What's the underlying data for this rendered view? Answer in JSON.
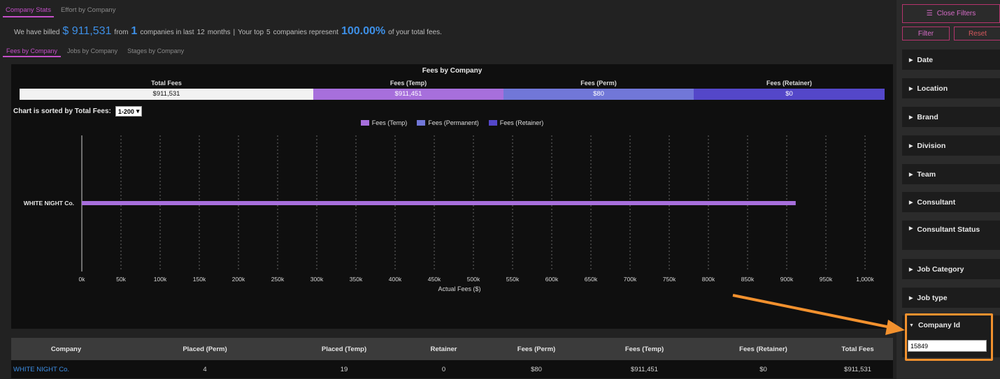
{
  "top_tabs": [
    "Company Stats",
    "Effort by Company"
  ],
  "summary": {
    "p1": "We have billed",
    "amount": "$ 911,531",
    "p2": "from",
    "companies": "1",
    "p3": "companies in last",
    "months": "12",
    "p4": "months",
    "sep": "|",
    "p5": "Your top",
    "top_n": "5",
    "p6": "companies represent",
    "percent": "100.00%",
    "p7": "of your total fees."
  },
  "sub_tabs": [
    "Fees by Company",
    "Jobs by Company",
    "Stages by Company"
  ],
  "panel_title": "Fees by Company",
  "totals": [
    {
      "label": "Total Fees",
      "value": "$911,531",
      "color": "#f2f2f2",
      "text_color": "#111111"
    },
    {
      "label": "Fees (Temp)",
      "value": "$911,451",
      "color": "#a76fdc",
      "text_color": "#ffffff"
    },
    {
      "label": "Fees (Perm)",
      "value": "$80",
      "color": "#7177d8",
      "text_color": "#ffffff"
    },
    {
      "label": "Fees (Retainer)",
      "value": "$0",
      "color": "#5447c9",
      "text_color": "#ffffff"
    }
  ],
  "sort": {
    "label": "Chart is sorted by Total Fees:",
    "value": "1-200"
  },
  "chart_data": {
    "type": "bar",
    "orientation": "horizontal",
    "stacked": true,
    "categories": [
      "WHITE NIGHT Co."
    ],
    "series": [
      {
        "name": "Fees (Temp)",
        "values": [
          911451
        ],
        "color": "#a76fdc"
      },
      {
        "name": "Fees (Permanent)",
        "values": [
          80
        ],
        "color": "#7177d8"
      },
      {
        "name": "Fees (Retainer)",
        "values": [
          0
        ],
        "color": "#5447c9"
      }
    ],
    "xlabel": "Actual Fees ($)",
    "xlim": [
      0,
      1000000
    ],
    "xticks": [
      0,
      50000,
      100000,
      150000,
      200000,
      250000,
      300000,
      350000,
      400000,
      450000,
      500000,
      550000,
      600000,
      650000,
      700000,
      750000,
      800000,
      850000,
      900000,
      950000,
      1000000
    ],
    "xtick_labels": [
      "0k",
      "50k",
      "100k",
      "150k",
      "200k",
      "250k",
      "300k",
      "350k",
      "400k",
      "450k",
      "500k",
      "550k",
      "600k",
      "650k",
      "700k",
      "750k",
      "800k",
      "850k",
      "900k",
      "950k",
      "1,000k"
    ],
    "grid": true,
    "legend_position": "top-center"
  },
  "table": {
    "headers": [
      "Company",
      "Placed (Perm)",
      "Placed (Temp)",
      "Retainer",
      "Fees (Perm)",
      "Fees (Temp)",
      "Fees (Retainer)",
      "Total Fees"
    ],
    "rows": [
      [
        "WHITE NIGHT Co.",
        "4",
        "19",
        "0",
        "$80",
        "$911,451",
        "$0",
        "$911,531"
      ]
    ]
  },
  "sidebar": {
    "close_filters": "Close Filters",
    "filter": "Filter",
    "reset": "Reset",
    "facets": [
      "Date",
      "Location",
      "Brand",
      "Division",
      "Team",
      "Consultant",
      "Consultant Status",
      "Job Category",
      "Job type"
    ],
    "open_facet": {
      "label": "Company Id",
      "value": "15849"
    }
  },
  "colors": {
    "accent": "#c54fc9",
    "highlight": "#f2912e",
    "link": "#3d8fe6"
  }
}
